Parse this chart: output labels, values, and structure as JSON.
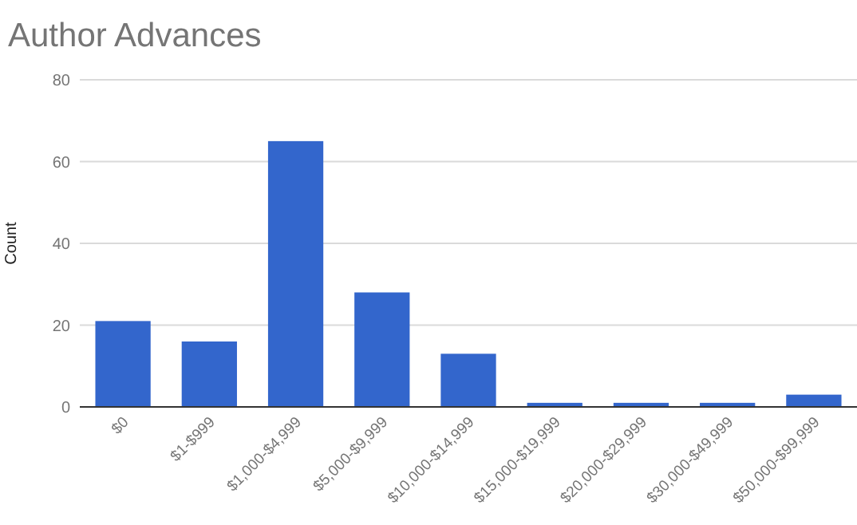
{
  "chart_data": {
    "type": "bar",
    "title": "Author Advances",
    "ylabel": "Count",
    "categories": [
      "$0",
      "$1-$999",
      "$1,000-$4,999",
      "$5,000-$9,999",
      "$10,000-$14,999",
      "$15,000-$19,999",
      "$20,000-$29,999",
      "$30,000-$49,999",
      "$50,000-$99,999"
    ],
    "values": [
      21,
      16,
      65,
      28,
      13,
      1,
      1,
      1,
      3
    ],
    "color": "#3366cc",
    "ylim": [
      0,
      80
    ],
    "yticks": [
      0,
      20,
      40,
      60,
      80
    ],
    "grid": "y"
  }
}
